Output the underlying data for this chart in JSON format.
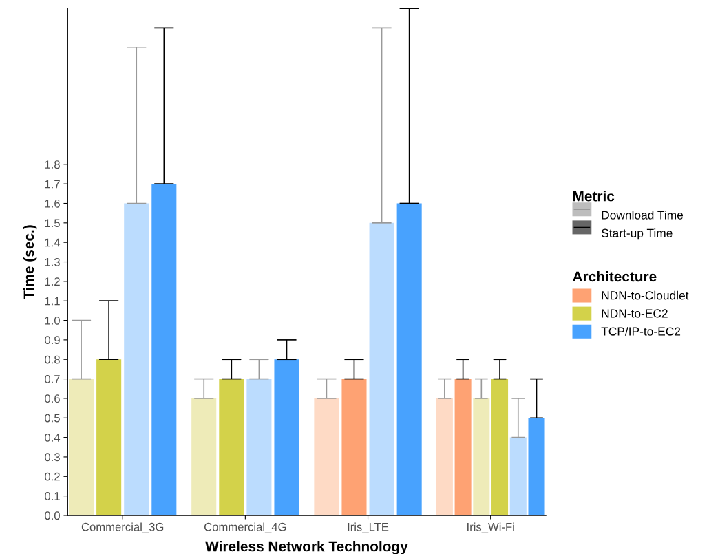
{
  "chart_data": {
    "type": "bar",
    "xlabel": "Wireless Network Technology",
    "ylabel": "Time (sec.)",
    "categories": [
      "Commercial_3G",
      "Commercial_4G",
      "Iris_LTE",
      "Iris_Wi-Fi"
    ],
    "ylim": [
      0,
      2.6
    ],
    "yticks": [
      {
        "value": 0,
        "label": "0.0"
      },
      0.1,
      0.2,
      0.3,
      0.4,
      0.5,
      0.6,
      0.7,
      0.8,
      0.9,
      {
        "value": 1,
        "label": "1.0"
      },
      1.1,
      1.2,
      1.3,
      1.4,
      1.5,
      1.6,
      1.7,
      1.8
    ],
    "grid": false,
    "legend": "right",
    "legend_title": [
      "Metric",
      "Architecture"
    ],
    "annotations": [
      "Download Time",
      "Start-up Time"
    ],
    "series": [
      {
        "color": "#fedac5",
        "values": [
          null,
          null,
          0.6,
          0.6
        ],
        "errors": [
          null,
          null,
          [
            0.6,
            0.7
          ],
          [
            0.6,
            0.7
          ]
        ]
      },
      {
        "name": "NDN-to-Cloudlet",
        "color": "#fea273",
        "values": [
          null,
          null,
          0.7,
          0.7
        ],
        "errors": [
          null,
          null,
          [
            0.7,
            0.8
          ],
          [
            0.7,
            0.8
          ]
        ]
      },
      {
        "color": "#eeebb8",
        "values": [
          0.7,
          0.6,
          null,
          0.6
        ],
        "errors": [
          [
            0.7,
            1.0
          ],
          [
            0.6,
            0.7
          ],
          null,
          [
            0.6,
            0.7
          ]
        ]
      },
      {
        "name": "NDN-to-EC2",
        "color": "#d3d24a",
        "values": [
          0.8,
          0.7,
          null,
          0.7
        ],
        "errors": [
          [
            0.8,
            1.1
          ],
          [
            0.7,
            0.8
          ],
          null,
          [
            0.7,
            0.8
          ]
        ]
      },
      {
        "color": "#bbdcfe",
        "values": [
          1.6,
          0.7,
          1.5,
          0.4
        ],
        "errors": [
          [
            1.6,
            2.4
          ],
          [
            0.7,
            0.8
          ],
          [
            1.5,
            2.5
          ],
          [
            0.4,
            0.6
          ]
        ]
      },
      {
        "name": "TCP/IP-to-EC2",
        "color": "#48a2fe",
        "values": [
          1.7,
          0.8,
          1.6,
          0.5
        ],
        "errors": [
          [
            1.7,
            2.5
          ],
          [
            0.8,
            0.9
          ],
          [
            1.6,
            2.6
          ],
          [
            0.5,
            0.7
          ]
        ]
      }
    ]
  }
}
